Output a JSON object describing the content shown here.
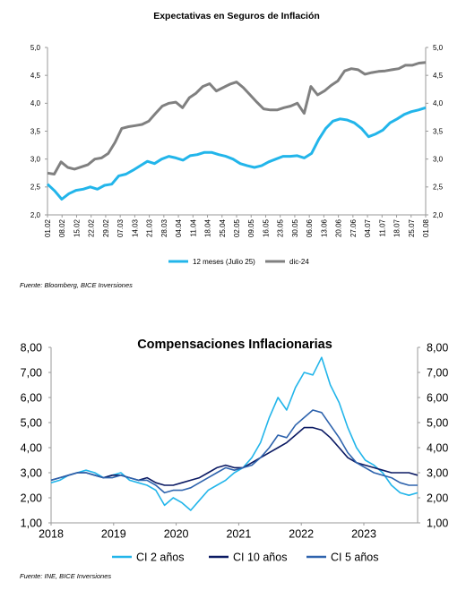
{
  "colors": {
    "light_blue": "#22b5ea",
    "grey": "#808080",
    "dark_navy": "#0b1a63",
    "mid_blue": "#2e63ad",
    "axis": "#9a9a9a"
  },
  "chart_data": [
    {
      "type": "line",
      "title": "Expectativas en Seguros de Inflación",
      "x_ticks": [
        "01.02",
        "08.02",
        "15.02",
        "22.02",
        "29.02",
        "07.03",
        "14.03",
        "21.03",
        "28.03",
        "04.04",
        "11.04",
        "18.04",
        "25.04",
        "02.05",
        "09.05",
        "16.05",
        "23.05",
        "30.05",
        "06.06",
        "13.06",
        "20.06",
        "27.06",
        "04.07",
        "11.07",
        "18.07",
        "25.07",
        "01.08"
      ],
      "ylim": [
        2.0,
        5.0
      ],
      "y_ticks": [
        "2,0",
        "2,5",
        "3,0",
        "3,5",
        "4,0",
        "4,5",
        "5,0"
      ],
      "y_ticks_right": [
        "2,0",
        "2,5",
        "3,0",
        "3,5",
        "4,0",
        "4,5",
        "5,0"
      ],
      "legend_position": "bottom",
      "grid": false,
      "series": [
        {
          "name": "12 meses (Julio 25)",
          "color": "#22b5ea",
          "values": [
            2.55,
            2.43,
            2.28,
            2.38,
            2.44,
            2.46,
            2.5,
            2.46,
            2.53,
            2.55,
            2.7,
            2.73,
            2.8,
            2.88,
            2.96,
            2.92,
            3.0,
            3.05,
            3.02,
            2.98,
            3.06,
            3.08,
            3.12,
            3.12,
            3.08,
            3.05,
            3.0,
            2.92,
            2.88,
            2.85,
            2.88,
            2.95,
            3.0,
            3.05,
            3.05,
            3.06,
            3.02,
            3.1,
            3.35,
            3.55,
            3.68,
            3.72,
            3.7,
            3.65,
            3.55,
            3.4,
            3.45,
            3.52,
            3.65,
            3.72,
            3.8,
            3.85,
            3.88,
            3.92
          ]
        },
        {
          "name": "dic-24",
          "color": "#808080",
          "values": [
            2.75,
            2.73,
            2.95,
            2.85,
            2.82,
            2.86,
            2.9,
            3.0,
            3.02,
            3.1,
            3.3,
            3.55,
            3.58,
            3.6,
            3.62,
            3.68,
            3.82,
            3.95,
            4.0,
            4.02,
            3.92,
            4.1,
            4.18,
            4.3,
            4.35,
            4.22,
            4.28,
            4.34,
            4.38,
            4.28,
            4.15,
            4.02,
            3.9,
            3.88,
            3.88,
            3.92,
            3.95,
            4.0,
            3.82,
            4.3,
            4.15,
            4.22,
            4.32,
            4.4,
            4.58,
            4.62,
            4.6,
            4.52,
            4.55,
            4.57,
            4.58,
            4.6,
            4.62,
            4.68,
            4.68,
            4.72,
            4.73
          ]
        }
      ],
      "source": "Fuente: Bloomberg, BICE Inversiones"
    },
    {
      "type": "line",
      "title": "Compensaciones Inflacionarias",
      "x_ticks": [
        "2018",
        "2019",
        "2020",
        "2021",
        "2022",
        "2023"
      ],
      "ylim": [
        1.0,
        8.0
      ],
      "y_ticks": [
        "1,00",
        "2,00",
        "3,00",
        "4,00",
        "5,00",
        "6,00",
        "7,00",
        "8,00"
      ],
      "y_ticks_right": [
        "1,00",
        "2,00",
        "3,00",
        "4,00",
        "5,00",
        "6,00",
        "7,00",
        "8,00"
      ],
      "legend_position": "bottom",
      "grid": false,
      "series": [
        {
          "name": "CI 2 años",
          "color": "#22b5ea",
          "values": [
            2.6,
            2.7,
            2.9,
            3.0,
            3.1,
            3.0,
            2.8,
            2.9,
            3.0,
            2.7,
            2.6,
            2.5,
            2.3,
            1.7,
            2.0,
            1.8,
            1.5,
            1.9,
            2.3,
            2.5,
            2.7,
            3.0,
            3.2,
            3.6,
            4.2,
            5.2,
            6.0,
            5.5,
            6.4,
            7.0,
            6.9,
            7.6,
            6.5,
            5.8,
            4.8,
            4.0,
            3.5,
            3.3,
            3.0,
            2.5,
            2.2,
            2.1,
            2.2
          ]
        },
        {
          "name": "CI 10 años",
          "color": "#0b1a63",
          "values": [
            2.7,
            2.8,
            2.9,
            3.0,
            3.0,
            2.9,
            2.8,
            2.9,
            2.9,
            2.8,
            2.7,
            2.8,
            2.6,
            2.5,
            2.5,
            2.6,
            2.7,
            2.8,
            3.0,
            3.2,
            3.3,
            3.2,
            3.2,
            3.4,
            3.6,
            3.8,
            4.0,
            4.2,
            4.5,
            4.8,
            4.8,
            4.7,
            4.4,
            4.0,
            3.6,
            3.4,
            3.3,
            3.2,
            3.1,
            3.0,
            3.0,
            3.0,
            2.9
          ]
        },
        {
          "name": "CI 5 años",
          "color": "#2e63ad",
          "values": [
            2.7,
            2.8,
            2.9,
            3.0,
            3.0,
            2.9,
            2.8,
            2.8,
            2.9,
            2.8,
            2.7,
            2.7,
            2.5,
            2.2,
            2.3,
            2.3,
            2.4,
            2.6,
            2.8,
            3.0,
            3.2,
            3.1,
            3.2,
            3.3,
            3.6,
            4.0,
            4.5,
            4.4,
            4.9,
            5.2,
            5.5,
            5.4,
            4.9,
            4.4,
            3.8,
            3.4,
            3.2,
            3.0,
            2.9,
            2.8,
            2.6,
            2.5,
            2.5
          ]
        }
      ],
      "source": "Fuente: INE, BICE Inversiones"
    }
  ]
}
